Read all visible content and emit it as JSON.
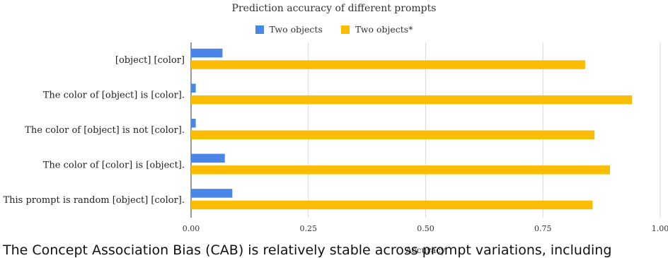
{
  "chart_data": {
    "type": "bar",
    "orientation": "horizontal",
    "title": "Prediction accuracy of different prompts",
    "xlabel": "Accuracy",
    "ylabel": "",
    "categories": [
      "[object] [color]",
      "The color of [object] is [color].",
      "The color of [object] is not [color].",
      "The color of [color] is [object].",
      "This prompt is random [object] [color]."
    ],
    "series": [
      {
        "name": "Two objects",
        "color": "#4a86e8",
        "values": [
          0.067,
          0.01,
          0.01,
          0.072,
          0.088
        ]
      },
      {
        "name": "Two objects*",
        "color": "#fbbc04",
        "values": [
          0.84,
          0.94,
          0.86,
          0.893,
          0.856
        ]
      }
    ],
    "xlim": [
      0,
      1
    ],
    "xticks": [
      "0.00",
      "0.25",
      "0.50",
      "0.75",
      "1.00"
    ],
    "grid": true,
    "legend_position": "top"
  },
  "caption_fragment": "The Concept Association Bias (CAB) is relatively stable across prompt variations, including"
}
